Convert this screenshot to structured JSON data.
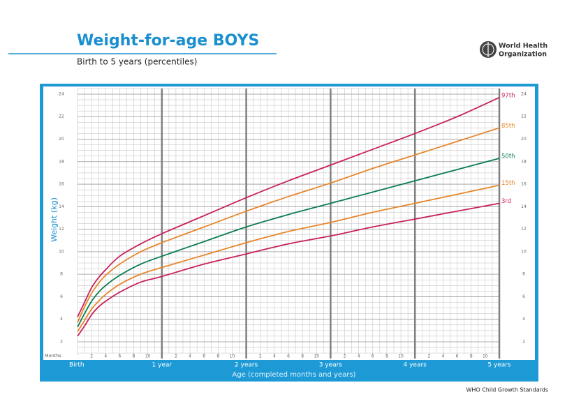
{
  "chart_data": {
    "type": "line",
    "title": "Weight-for-age BOYS",
    "subtitle": "Birth to 5 years (percentiles)",
    "logo_text": [
      "World Health",
      "Organization"
    ],
    "y_label": "Weight (kg)",
    "x_label": "Age (completed months and years)",
    "x_unit_label": "Months",
    "source": "WHO Child Growth Standards",
    "x": [
      0,
      1,
      2,
      3,
      4,
      6,
      9,
      12,
      18,
      24,
      30,
      36,
      42,
      48,
      54,
      60
    ],
    "series": [
      {
        "name": "97th",
        "color": "#c8215b",
        "values": [
          4.2,
          5.5,
          6.8,
          7.7,
          8.4,
          9.6,
          10.7,
          11.6,
          13.2,
          14.8,
          16.3,
          17.7,
          19.1,
          20.5,
          22.0,
          23.7
        ]
      },
      {
        "name": "85th",
        "color": "#e8862a",
        "values": [
          3.7,
          5.1,
          6.3,
          7.2,
          7.9,
          8.9,
          10.0,
          10.8,
          12.2,
          13.6,
          14.9,
          16.1,
          17.4,
          18.6,
          19.8,
          21.0
        ]
      },
      {
        "name": "50th",
        "color": "#0c7d50",
        "values": [
          3.3,
          4.5,
          5.6,
          6.4,
          7.0,
          7.9,
          8.9,
          9.6,
          10.9,
          12.2,
          13.3,
          14.3,
          15.3,
          16.3,
          17.3,
          18.3
        ]
      },
      {
        "name": "15th",
        "color": "#e8862a",
        "values": [
          2.9,
          3.9,
          4.9,
          5.6,
          6.2,
          7.1,
          8.0,
          8.6,
          9.7,
          10.8,
          11.8,
          12.6,
          13.5,
          14.3,
          15.1,
          15.9
        ]
      },
      {
        "name": "3rd",
        "color": "#c8215b",
        "values": [
          2.5,
          3.4,
          4.4,
          5.1,
          5.6,
          6.4,
          7.3,
          7.8,
          8.9,
          9.8,
          10.7,
          11.4,
          12.2,
          12.9,
          13.6,
          14.3
        ]
      }
    ],
    "xlim": [
      0,
      60
    ],
    "xticks": [
      {
        "value": 0,
        "label": "Birth"
      },
      {
        "value": 12,
        "label": "1 year"
      },
      {
        "value": 24,
        "label": "2 years"
      },
      {
        "value": 36,
        "label": "3 years"
      },
      {
        "value": 48,
        "label": "4 years"
      },
      {
        "value": 60,
        "label": "5 years"
      }
    ],
    "minor_xticks": [
      2,
      4,
      6,
      8,
      10,
      {
        "value": 14,
        "label": "2"
      },
      {
        "value": 16,
        "label": "4"
      },
      {
        "value": 18,
        "label": "6"
      },
      {
        "value": 20,
        "label": "8"
      },
      {
        "value": 22,
        "label": "10"
      },
      {
        "value": 26,
        "label": "2"
      },
      {
        "value": 28,
        "label": "4"
      },
      {
        "value": 30,
        "label": "6"
      },
      {
        "value": 32,
        "label": "8"
      },
      {
        "value": 34,
        "label": "10"
      },
      {
        "value": 38,
        "label": "2"
      },
      {
        "value": 40,
        "label": "4"
      },
      {
        "value": 42,
        "label": "6"
      },
      {
        "value": 44,
        "label": "8"
      },
      {
        "value": 46,
        "label": "10"
      },
      {
        "value": 50,
        "label": "2"
      },
      {
        "value": 52,
        "label": "4"
      },
      {
        "value": 54,
        "label": "6"
      },
      {
        "value": 56,
        "label": "8"
      },
      {
        "value": 58,
        "label": "10"
      }
    ],
    "ylim": [
      1,
      24.5
    ],
    "yticks": [
      2,
      4,
      6,
      8,
      10,
      12,
      14,
      16,
      18,
      20,
      22,
      24
    ],
    "grid": true
  }
}
